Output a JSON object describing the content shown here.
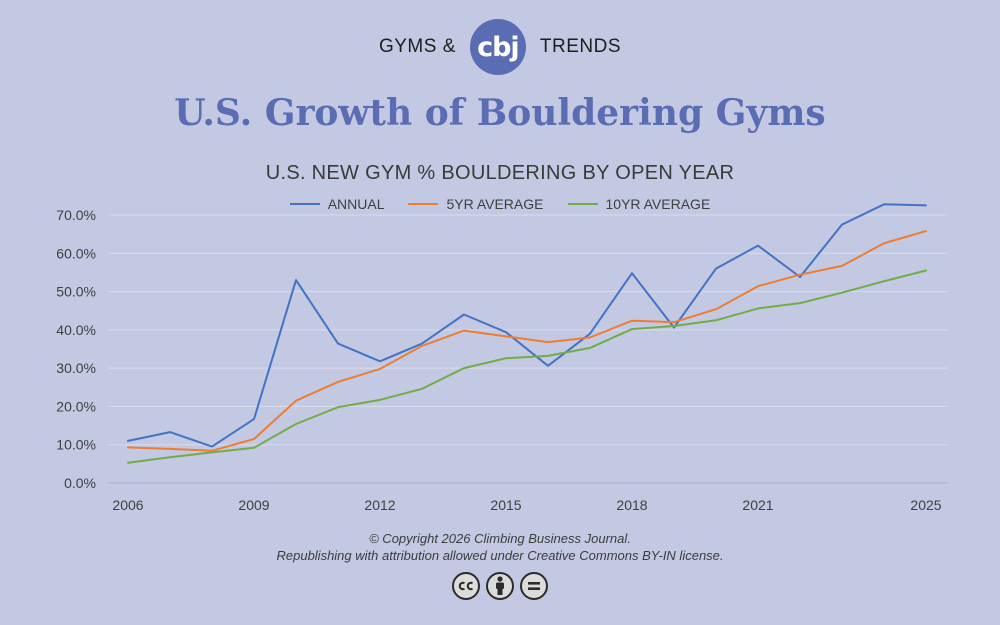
{
  "brand": {
    "left_word": "GYMS &",
    "logo_text": "cbj",
    "right_word": "TRENDS",
    "logo_color": "#5a6cb3"
  },
  "main_title": "U.S. Growth of Bouldering Gyms",
  "copyright": {
    "line1": "© Copyright 2026 Climbing Business Journal.",
    "line2": "Republishing with attribution allowed under Creative Commons BY-IN license."
  },
  "license_icons": [
    "creative-commons-icon",
    "attribution-person-icon",
    "no-derivatives-icon"
  ],
  "chart_data": {
    "type": "line",
    "title": "U.S. NEW GYM % BOULDERING BY OPEN YEAR",
    "xlabel": "",
    "ylabel": "",
    "x": [
      2006,
      2007,
      2008,
      2009,
      2010,
      2011,
      2012,
      2013,
      2014,
      2015,
      2016,
      2017,
      2018,
      2019,
      2020,
      2021,
      2022,
      2023,
      2024,
      2025
    ],
    "x_tick_labels": [
      "2006",
      "2009",
      "2012",
      "2015",
      "2018",
      "2021",
      "2025"
    ],
    "x_tick_values": [
      2006,
      2009,
      2012,
      2015,
      2018,
      2021,
      2025
    ],
    "ylim": [
      0,
      70
    ],
    "y_ticks": [
      0,
      10,
      20,
      30,
      40,
      50,
      60,
      70
    ],
    "y_tick_labels": [
      "0.0%",
      "10.0%",
      "20.0%",
      "30.0%",
      "40.0%",
      "50.0%",
      "60.0%",
      "70.0%"
    ],
    "grid": "horizontal",
    "legend_position": "top",
    "series": [
      {
        "name": "ANNUAL",
        "color": "#4472c4",
        "values": [
          11.0,
          13.3,
          9.5,
          16.7,
          53.0,
          36.4,
          31.8,
          36.4,
          44.0,
          39.4,
          30.6,
          39.0,
          54.8,
          40.6,
          56.0,
          62.0,
          53.8,
          67.5,
          72.8,
          72.5
        ]
      },
      {
        "name": "5YR AVERAGE",
        "color": "#ed7d31",
        "values": [
          9.3,
          8.9,
          8.4,
          11.5,
          21.5,
          26.4,
          29.8,
          35.8,
          39.8,
          38.3,
          36.8,
          38.0,
          42.4,
          42.0,
          45.4,
          51.4,
          54.4,
          56.7,
          62.6,
          65.8
        ]
      },
      {
        "name": "10YR AVERAGE",
        "color": "#70ad47",
        "values": [
          5.3,
          6.7,
          8.0,
          9.2,
          15.4,
          19.8,
          21.7,
          24.6,
          30.0,
          32.6,
          33.2,
          35.3,
          40.2,
          41.0,
          42.5,
          45.6,
          47.0,
          49.7,
          52.7,
          55.5
        ]
      }
    ]
  }
}
